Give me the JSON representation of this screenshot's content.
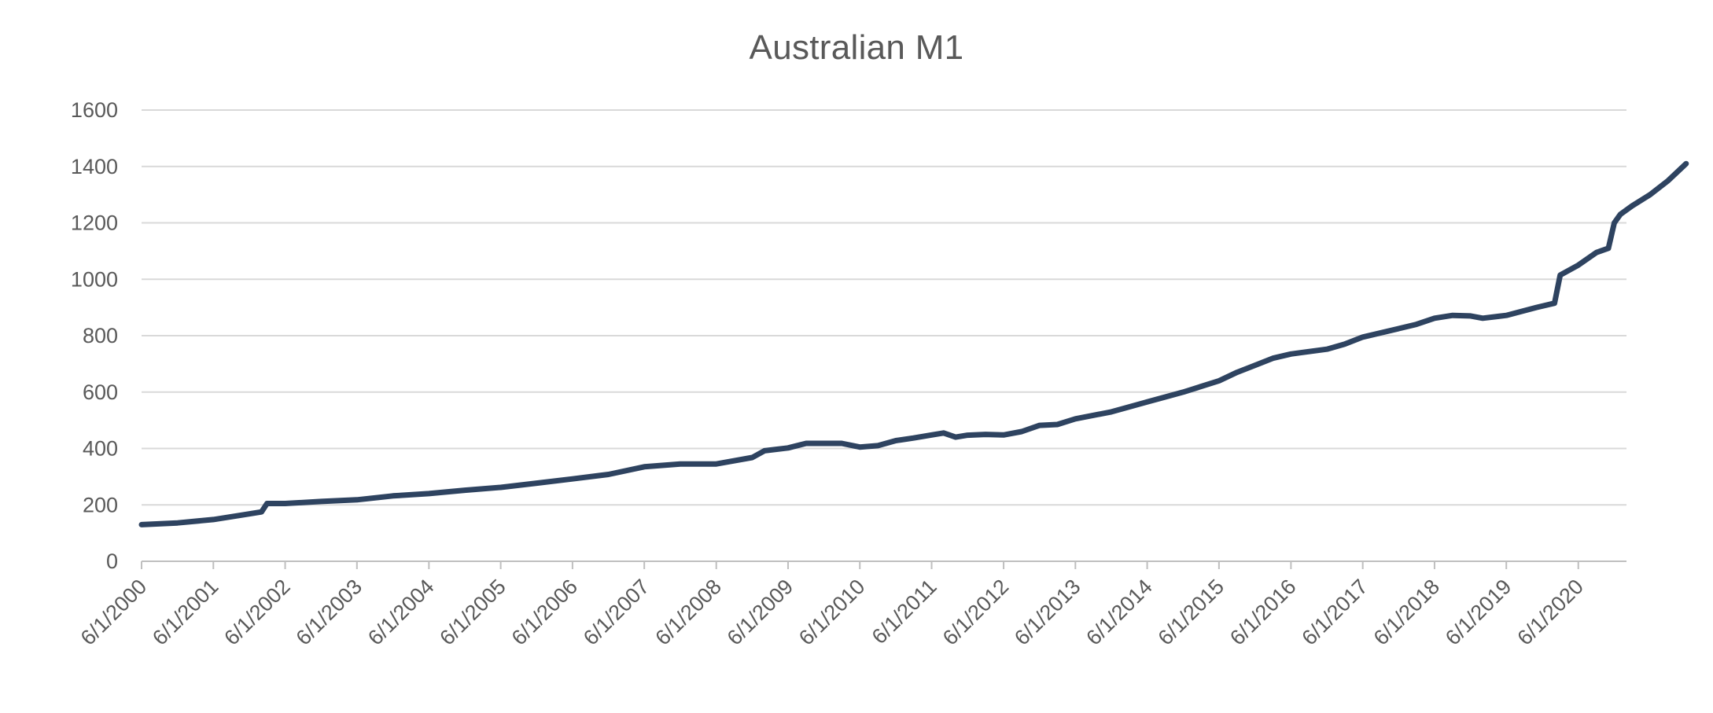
{
  "chart_data": {
    "type": "line",
    "title": "Australian M1",
    "xlabel": "",
    "ylabel": "",
    "ylim": [
      0,
      1600
    ],
    "yticks": [
      0,
      200,
      400,
      600,
      800,
      1000,
      1200,
      1400,
      1600
    ],
    "xtick_labels": [
      "6/1/2000",
      "6/1/2001",
      "6/1/2002",
      "6/1/2003",
      "6/1/2004",
      "6/1/2005",
      "6/1/2006",
      "6/1/2007",
      "6/1/2008",
      "6/1/2009",
      "6/1/2010",
      "6/1/2011",
      "6/1/2012",
      "6/1/2013",
      "6/1/2014",
      "6/1/2015",
      "6/1/2016",
      "6/1/2017",
      "6/1/2018",
      "6/1/2019",
      "6/1/2020"
    ],
    "xlim": [
      "2000-06-01",
      "2021-02-01"
    ],
    "grid": true,
    "legend": "none",
    "line_color": "#2e4360",
    "series": [
      {
        "points": [
          [
            "2000-06-01",
            130
          ],
          [
            "2000-12-01",
            136
          ],
          [
            "2001-06-01",
            148
          ],
          [
            "2001-12-01",
            168
          ],
          [
            "2002-02-01",
            175
          ],
          [
            "2002-03-01",
            205
          ],
          [
            "2002-06-01",
            205
          ],
          [
            "2002-12-01",
            212
          ],
          [
            "2003-06-01",
            218
          ],
          [
            "2003-12-01",
            232
          ],
          [
            "2004-06-01",
            240
          ],
          [
            "2004-12-01",
            252
          ],
          [
            "2005-06-01",
            262
          ],
          [
            "2005-12-01",
            277
          ],
          [
            "2006-06-01",
            292
          ],
          [
            "2006-12-01",
            308
          ],
          [
            "2007-06-01",
            335
          ],
          [
            "2007-12-01",
            345
          ],
          [
            "2008-06-01",
            345
          ],
          [
            "2008-12-01",
            368
          ],
          [
            "2009-02-01",
            392
          ],
          [
            "2009-06-01",
            402
          ],
          [
            "2009-09-01",
            418
          ],
          [
            "2009-12-01",
            418
          ],
          [
            "2010-03-01",
            418
          ],
          [
            "2010-06-01",
            405
          ],
          [
            "2010-09-01",
            410
          ],
          [
            "2010-12-01",
            428
          ],
          [
            "2011-03-01",
            437
          ],
          [
            "2011-06-01",
            448
          ],
          [
            "2011-08-01",
            455
          ],
          [
            "2011-10-01",
            440
          ],
          [
            "2011-12-01",
            447
          ],
          [
            "2012-03-01",
            450
          ],
          [
            "2012-06-01",
            448
          ],
          [
            "2012-09-01",
            460
          ],
          [
            "2012-12-01",
            482
          ],
          [
            "2013-03-01",
            485
          ],
          [
            "2013-06-01",
            505
          ],
          [
            "2013-12-01",
            530
          ],
          [
            "2014-06-01",
            565
          ],
          [
            "2014-12-01",
            600
          ],
          [
            "2015-06-01",
            640
          ],
          [
            "2015-09-01",
            670
          ],
          [
            "2015-12-01",
            695
          ],
          [
            "2016-03-01",
            720
          ],
          [
            "2016-06-01",
            735
          ],
          [
            "2016-12-01",
            752
          ],
          [
            "2017-03-01",
            770
          ],
          [
            "2017-06-01",
            795
          ],
          [
            "2017-12-01",
            825
          ],
          [
            "2018-03-01",
            840
          ],
          [
            "2018-06-01",
            862
          ],
          [
            "2018-09-01",
            872
          ],
          [
            "2018-12-01",
            870
          ],
          [
            "2019-02-01",
            862
          ],
          [
            "2019-06-01",
            872
          ],
          [
            "2019-11-01",
            900
          ],
          [
            "2020-02-01",
            915
          ],
          [
            "2020-03-01",
            1015
          ],
          [
            "2020-06-01",
            1050
          ],
          [
            "2020-09-01",
            1095
          ],
          [
            "2020-11-01",
            1110
          ],
          [
            "2020-12-01",
            1200
          ],
          [
            "2021-01-01",
            1230
          ],
          [
            "2021-03-01",
            1260
          ],
          [
            "2021-06-01",
            1300
          ],
          [
            "2021-09-01",
            1350
          ],
          [
            "2021-12-01",
            1410
          ]
        ]
      }
    ]
  }
}
